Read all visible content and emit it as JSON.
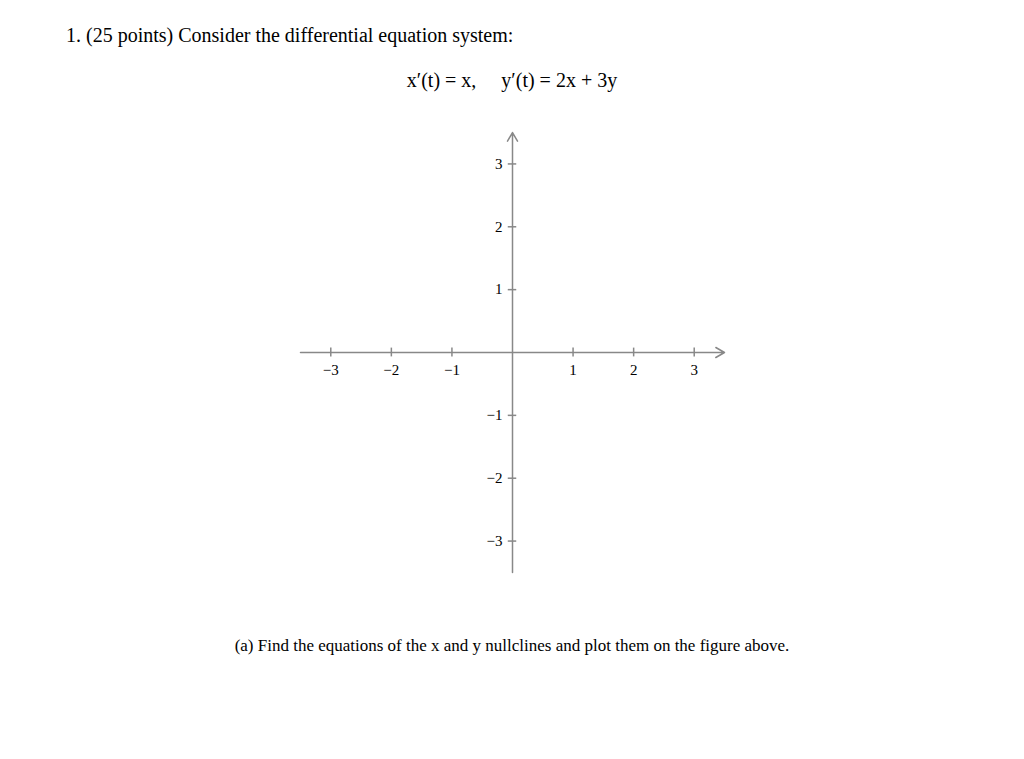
{
  "chart_data": {
    "type": "axes",
    "title": "1. (25 points) Consider the differential equation system:",
    "subtitle": "x′(t) = x,     y′(t) = 2x + 3y",
    "annotations": [
      "(a) Find the equations of the x and y nullclines and plot them on the figure above."
    ],
    "xlim": [
      -3.5,
      3.5
    ],
    "ylim": [
      -3.5,
      3.5
    ],
    "xticks": [
      -3,
      -2,
      -1,
      1,
      2,
      3
    ],
    "yticks": [
      -3,
      -2,
      -1,
      1,
      2,
      3
    ],
    "color": "#888888",
    "grid": false
  }
}
